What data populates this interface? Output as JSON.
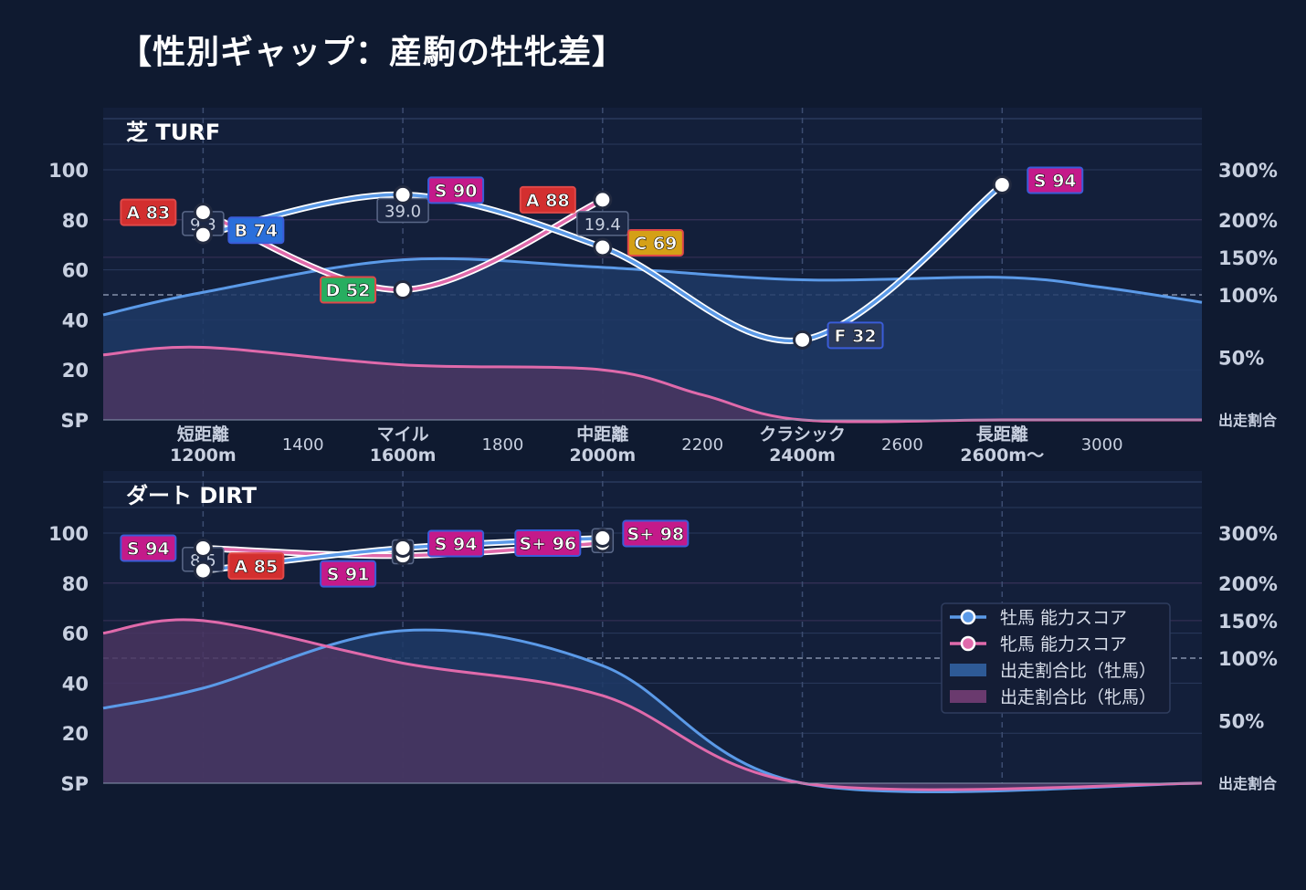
{
  "title": "【性別ギャップ：産駒の牡牝差】",
  "colors": {
    "background": "#0f1a30",
    "panel": "#131f3a",
    "male_line": "#5b9ae8",
    "female_line": "#e06aab",
    "male_fill": "#1e3a66",
    "female_fill": "#4a3560",
    "grid": "#2a3a5c",
    "text": "#c8d0e0",
    "grade_S": "#c41a8a",
    "grade_A": "#d32f2f",
    "grade_B": "#2a6fdb",
    "grade_C": "#d4a017",
    "grade_D": "#27ae60",
    "grade_F": "#2a3a5c"
  },
  "chart_data": [
    {
      "type": "line",
      "panel_label": "芝 TURF",
      "categories": [
        "短距離\n1200m",
        "マイル\n1600m",
        "中距離\n2000m",
        "クラシック\n2400m",
        "長距離\n2600m〜"
      ],
      "x_ticks": [
        "短距離\n1200m",
        "1400",
        "マイル\n1600m",
        "1800",
        "中距離\n2000m",
        "2200",
        "クラシック\n2400m",
        "2600",
        "長距離\n2600m〜",
        "3000"
      ],
      "y_left_ticks": [
        "SP",
        "20",
        "40",
        "60",
        "80",
        "100"
      ],
      "y_right_ticks": [
        "出走割合",
        "50%",
        "100%",
        "150%",
        "200%",
        "300%"
      ],
      "ylim": [
        0,
        100
      ],
      "series": [
        {
          "name": "牡馬 能力スコア",
          "values": [
            74,
            90,
            69,
            32,
            94
          ],
          "grades": [
            "B 74",
            "S 90",
            "C 69",
            "F 32",
            "S 94"
          ]
        },
        {
          "name": "牝馬 能力スコア",
          "values": [
            83,
            52,
            88,
            null,
            null
          ],
          "grades": [
            "A 83",
            "D 52",
            "A 88",
            null,
            null
          ]
        }
      ],
      "gaps": [
        "9.3",
        "39.0",
        "19.4",
        null,
        null
      ],
      "share_male": {
        "x": [
          1000,
          1200,
          1600,
          2000,
          2400,
          2800,
          3000,
          3200
        ],
        "values": [
          42,
          51,
          64,
          61,
          56,
          57,
          53,
          47
        ]
      },
      "share_female": {
        "x": [
          1000,
          1200,
          1600,
          2000,
          2200,
          2400,
          2800,
          3200
        ],
        "values": [
          26,
          29,
          22,
          20,
          10,
          0,
          0,
          0
        ]
      }
    },
    {
      "type": "line",
      "panel_label": "ダート DIRT",
      "categories": [
        "短距離\n1200m",
        "マイル\n1600m",
        "中距離\n2000m",
        "クラシック\n2400m",
        "長距離\n2600m〜"
      ],
      "y_left_ticks": [
        "SP",
        "20",
        "40",
        "60",
        "80",
        "100"
      ],
      "y_right_ticks": [
        "出走割合",
        "50%",
        "100%",
        "150%",
        "200%",
        "300%"
      ],
      "ylim": [
        0,
        100
      ],
      "series": [
        {
          "name": "牡馬 能力スコア",
          "values": [
            85,
            94,
            98,
            null,
            null
          ],
          "grades": [
            "A 85",
            "S 94",
            "S+ 98",
            null,
            null
          ]
        },
        {
          "name": "牝馬 能力スコア",
          "values": [
            94,
            91,
            96,
            null,
            null
          ],
          "grades": [
            "S 94",
            "S 91",
            "S+ 96",
            null,
            null
          ]
        }
      ],
      "gaps": [
        "8.5",
        "3",
        "2",
        null,
        null
      ],
      "share_male": {
        "x": [
          1000,
          1200,
          1600,
          2000,
          2400,
          3200
        ],
        "values": [
          30,
          38,
          61,
          47,
          0,
          0
        ]
      },
      "share_female": {
        "x": [
          1000,
          1200,
          1600,
          2000,
          2400,
          3200
        ],
        "values": [
          60,
          65,
          48,
          35,
          0,
          0
        ]
      }
    }
  ],
  "legend": [
    {
      "label": "牡馬 能力スコア",
      "kind": "line-male"
    },
    {
      "label": "牝馬 能力スコア",
      "kind": "line-female"
    },
    {
      "label": "出走割合比（牡馬）",
      "kind": "fill-male"
    },
    {
      "label": "出走割合比（牝馬）",
      "kind": "fill-female"
    }
  ]
}
